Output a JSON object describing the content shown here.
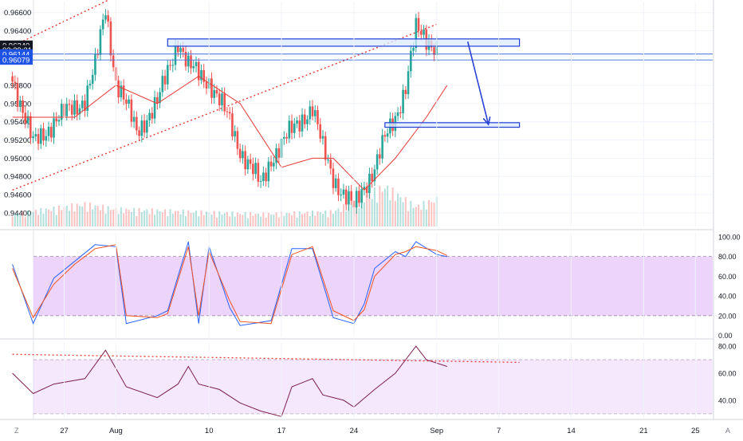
{
  "colors": {
    "up": "#26a69a",
    "down": "#ef5350",
    "ma": "#e53935",
    "zone_fill": "#dbe9ff",
    "zone_stroke": "#1e3fd8",
    "arrow": "#2a41d6",
    "band_fill": "#e9cdfa",
    "stoch_k": "#2962ff",
    "stoch_d": "#f4511e",
    "rsi_line": "#7b1f4e",
    "trend": "#e53935",
    "label_price": "#131722",
    "label_blue": "#1e53e5"
  },
  "chart_data": [
    {
      "type": "candlestick",
      "title": "",
      "instrument": "",
      "x_labels": [
        "27",
        "Aug",
        "10",
        "17",
        "24",
        "Sep",
        "7",
        "14",
        "21",
        "25"
      ],
      "ylim": [
        0.9425,
        0.9672
      ],
      "y_ticks": [
        "0.96600",
        "0.96400",
        "0.95800",
        "0.95600",
        "0.95400",
        "0.95200",
        "0.95000",
        "0.94800",
        "0.94600",
        "0.94400"
      ],
      "y_tick_values": [
        0.966,
        0.964,
        0.958,
        0.956,
        0.954,
        0.952,
        0.95,
        0.948,
        0.946,
        0.944
      ],
      "price_labels": [
        {
          "text": "0.96240",
          "value": 0.9624,
          "style": "price"
        },
        {
          "text": "02:29:31",
          "value": 0.9619,
          "style": "price"
        },
        {
          "text": "0.96144",
          "value": 0.96144,
          "style": "blue"
        },
        {
          "text": "0.96079",
          "value": 0.96079,
          "style": "blue"
        }
      ],
      "horizontal_lines": [
        0.96144,
        0.96079
      ],
      "resistance_zone": {
        "from_label": "Aug 6",
        "to_label": "Sep 9",
        "low": 0.9623,
        "high": 0.9631
      },
      "support_zone": {
        "from_label": "Aug 27",
        "to_label": "Sep 9",
        "low": 0.9534,
        "high": 0.9539
      },
      "projection_arrow": {
        "from": [
          "Sep 4",
          0.9628
        ],
        "to": [
          "Sep 6",
          0.9537
        ]
      },
      "channel": {
        "lower": [
          [
            "Jul 22",
            0.9465
          ],
          [
            "Sep 1",
            0.9647
          ]
        ],
        "upper": [
          [
            "Jul 22",
            0.9623
          ],
          [
            "Aug 2",
            0.9683
          ]
        ]
      },
      "close_path": [
        [
          "Jul 22",
          0.959
        ],
        [
          "Jul 24",
          0.9515
        ],
        [
          "Jul 26",
          0.954
        ],
        [
          "Jul 29",
          0.9565
        ],
        [
          "Jul 30",
          0.96
        ],
        [
          "Jul 31",
          0.9665
        ],
        [
          "Aug 1",
          0.9585
        ],
        [
          "Aug 3",
          0.953
        ],
        [
          "Aug 5",
          0.956
        ],
        [
          "Aug 7",
          0.963
        ],
        [
          "Aug 8",
          0.96
        ],
        [
          "Aug 10",
          0.9585
        ],
        [
          "Aug 12",
          0.954
        ],
        [
          "Aug 13",
          0.951
        ],
        [
          "Aug 15",
          0.947
        ],
        [
          "Aug 16",
          0.95
        ],
        [
          "Aug 18",
          0.953
        ],
        [
          "Aug 19",
          0.9545
        ],
        [
          "Aug 20",
          0.9555
        ],
        [
          "Aug 21",
          0.951
        ],
        [
          "Aug 22",
          0.948
        ],
        [
          "Aug 23",
          0.946
        ],
        [
          "Aug 24",
          0.9445
        ],
        [
          "Aug 25",
          0.947
        ],
        [
          "Aug 26",
          0.949
        ],
        [
          "Aug 27",
          0.952
        ],
        [
          "Aug 28",
          0.9545
        ],
        [
          "Aug 29",
          0.958
        ],
        [
          "Aug 30",
          0.964
        ],
        [
          "Aug 31",
          0.963
        ],
        [
          "Sep 1",
          0.9624
        ]
      ],
      "moving_average": [
        [
          "Jul 22",
          0.9545
        ],
        [
          "Jul 28",
          0.9545
        ],
        [
          "Aug 1",
          0.958
        ],
        [
          "Aug 5",
          0.956
        ],
        [
          "Aug 9",
          0.959
        ],
        [
          "Aug 13",
          0.956
        ],
        [
          "Aug 17",
          0.949
        ],
        [
          "Aug 20",
          0.95
        ],
        [
          "Aug 22",
          0.95
        ],
        [
          "Aug 25",
          0.9465
        ],
        [
          "Aug 28",
          0.95
        ],
        [
          "Aug 31",
          0.9545
        ],
        [
          "Sep 2",
          0.958
        ]
      ],
      "volume": {
        "scale_max": 100,
        "bars": [
          [
            "Jul 22",
            25
          ],
          [
            "Jul 29",
            45
          ],
          [
            "Aug 1",
            35
          ],
          [
            "Aug 8",
            30
          ],
          [
            "Aug 15",
            25
          ],
          [
            "Aug 22",
            30
          ],
          [
            "Aug 27",
            80
          ],
          [
            "Aug 30",
            40
          ],
          [
            "Sep 1",
            55
          ]
        ]
      }
    },
    {
      "type": "line",
      "title": "",
      "ylim": [
        -2,
        104
      ],
      "y_ticks": [
        "100.00",
        "80.00",
        "60.00",
        "40.00",
        "20.00",
        "0.00"
      ],
      "y_tick_values": [
        100,
        80,
        60,
        40,
        20,
        0
      ],
      "band": [
        20,
        80
      ],
      "series": [
        {
          "color_key": "stoch_k",
          "values": [
            [
              "Jul 22",
              72
            ],
            [
              "Jul 24",
              12
            ],
            [
              "Jul 26",
              58
            ],
            [
              "Jul 28",
              75
            ],
            [
              "Jul 30",
              92
            ],
            [
              "Aug 1",
              90
            ],
            [
              "Aug 2",
              12
            ],
            [
              "Aug 5",
              20
            ],
            [
              "Aug 6",
              25
            ],
            [
              "Aug 8",
              95
            ],
            [
              "Aug 9",
              12
            ],
            [
              "Aug 10",
              90
            ],
            [
              "Aug 12",
              28
            ],
            [
              "Aug 13",
              10
            ],
            [
              "Aug 16",
              15
            ],
            [
              "Aug 18",
              88
            ],
            [
              "Aug 20",
              88
            ],
            [
              "Aug 22",
              18
            ],
            [
              "Aug 24",
              12
            ],
            [
              "Aug 25",
              32
            ],
            [
              "Aug 26",
              68
            ],
            [
              "Aug 28",
              85
            ],
            [
              "Aug 29",
              80
            ],
            [
              "Aug 30",
              95
            ],
            [
              "Sep 1",
              82
            ],
            [
              "Sep 2",
              80
            ]
          ]
        },
        {
          "color_key": "stoch_d",
          "values": [
            [
              "Jul 22",
              68
            ],
            [
              "Jul 24",
              18
            ],
            [
              "Jul 26",
              52
            ],
            [
              "Jul 28",
              72
            ],
            [
              "Jul 30",
              88
            ],
            [
              "Aug 1",
              92
            ],
            [
              "Aug 2",
              20
            ],
            [
              "Aug 5",
              18
            ],
            [
              "Aug 6",
              22
            ],
            [
              "Aug 8",
              90
            ],
            [
              "Aug 9",
              20
            ],
            [
              "Aug 10",
              85
            ],
            [
              "Aug 12",
              35
            ],
            [
              "Aug 13",
              14
            ],
            [
              "Aug 16",
              12
            ],
            [
              "Aug 18",
              82
            ],
            [
              "Aug 20",
              90
            ],
            [
              "Aug 22",
              25
            ],
            [
              "Aug 24",
              15
            ],
            [
              "Aug 25",
              26
            ],
            [
              "Aug 26",
              60
            ],
            [
              "Aug 28",
              82
            ],
            [
              "Aug 29",
              85
            ],
            [
              "Aug 30",
              90
            ],
            [
              "Sep 1",
              86
            ],
            [
              "Sep 2",
              81
            ]
          ]
        }
      ]
    },
    {
      "type": "line",
      "title": "",
      "ylim": [
        27,
        83
      ],
      "y_ticks": [
        "80.00",
        "60.00",
        "40.00"
      ],
      "y_tick_values": [
        80,
        60,
        40
      ],
      "band": [
        30,
        70
      ],
      "series": [
        {
          "color_key": "rsi_line",
          "values": [
            [
              "Jul 22",
              60
            ],
            [
              "Jul 24",
              45
            ],
            [
              "Jul 26",
              52
            ],
            [
              "Jul 29",
              56
            ],
            [
              "Jul 31",
              77
            ],
            [
              "Aug 2",
              50
            ],
            [
              "Aug 5",
              42
            ],
            [
              "Aug 7",
              52
            ],
            [
              "Aug 8",
              65
            ],
            [
              "Aug 9",
              52
            ],
            [
              "Aug 11",
              48
            ],
            [
              "Aug 13",
              38
            ],
            [
              "Aug 15",
              32
            ],
            [
              "Aug 17",
              28
            ],
            [
              "Aug 18",
              50
            ],
            [
              "Aug 20",
              56
            ],
            [
              "Aug 21",
              44
            ],
            [
              "Aug 23",
              40
            ],
            [
              "Aug 24",
              35
            ],
            [
              "Aug 26",
              48
            ],
            [
              "Aug 28",
              60
            ],
            [
              "Aug 30",
              80
            ],
            [
              "Aug 31",
              70
            ],
            [
              "Sep 2",
              65
            ]
          ]
        }
      ],
      "trendline": [
        [
          "Jul 22",
          74
        ],
        [
          "Sep 9",
          68
        ]
      ]
    }
  ],
  "axis": {
    "corner_left": "Z",
    "corner_right": "A"
  }
}
